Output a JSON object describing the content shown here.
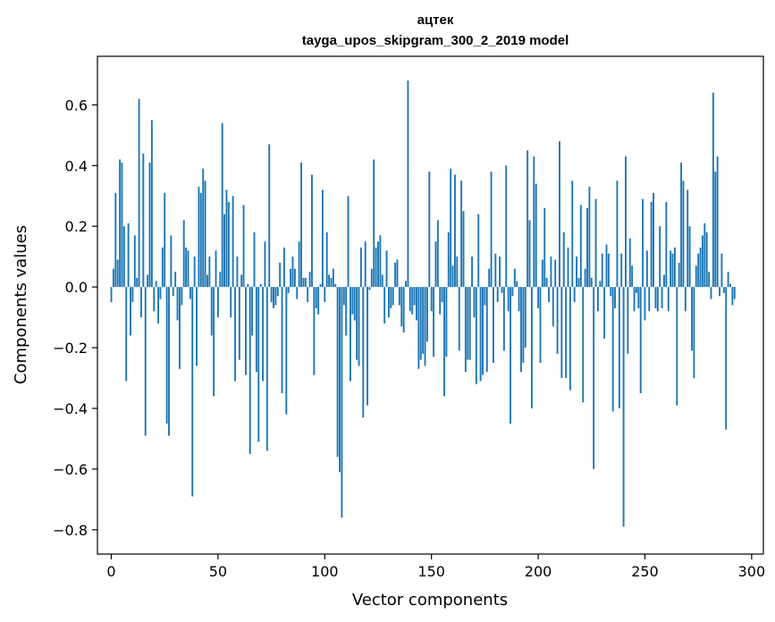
{
  "chart_data": {
    "type": "bar",
    "title": "ацтек",
    "subtitle": "tayga_upos_skipgram_300_2_2019 model",
    "xlabel": "Vector components",
    "ylabel": "Components values",
    "xlim": [
      -6.5,
      305.5
    ],
    "ylim": [
      -0.88,
      0.76
    ],
    "x_ticks": [
      0,
      50,
      100,
      150,
      200,
      250,
      300
    ],
    "x_tick_labels": [
      "0",
      "50",
      "100",
      "150",
      "200",
      "250",
      "300"
    ],
    "y_ticks": [
      -0.8,
      -0.6,
      -0.4,
      -0.2,
      0.0,
      0.2,
      0.4,
      0.6
    ],
    "y_tick_labels": [
      "−0.8",
      "−0.6",
      "−0.4",
      "−0.2",
      "0.0",
      "0.2",
      "0.4",
      "0.6"
    ],
    "bar_color": "#1f77b4",
    "grid": false,
    "legend": "none",
    "x_start": 0,
    "values": [
      -0.05,
      0.06,
      0.31,
      0.09,
      0.42,
      0.41,
      0.2,
      -0.31,
      0.21,
      -0.16,
      -0.05,
      0.17,
      0.03,
      0.62,
      -0.1,
      0.44,
      -0.49,
      0.04,
      0.41,
      0.55,
      -0.08,
      0.02,
      -0.12,
      -0.04,
      0.13,
      0.31,
      -0.45,
      -0.49,
      0.17,
      -0.03,
      0.05,
      -0.11,
      -0.27,
      -0.06,
      0.22,
      0.13,
      0.12,
      -0.04,
      -0.69,
      0.1,
      -0.26,
      0.33,
      0.31,
      0.39,
      0.35,
      0.04,
      0.1,
      -0.16,
      -0.36,
      0.12,
      -0.1,
      0.05,
      0.54,
      0.24,
      0.32,
      0.28,
      -0.1,
      0.3,
      -0.31,
      0.1,
      -0.24,
      0.04,
      0.27,
      -0.29,
      0.01,
      -0.55,
      -0.16,
      0.18,
      -0.28,
      -0.51,
      0.01,
      -0.31,
      0.15,
      -0.54,
      0.47,
      -0.05,
      -0.07,
      -0.06,
      -0.03,
      0.08,
      -0.35,
      0.13,
      -0.42,
      -0.02,
      0.06,
      0.1,
      0.06,
      -0.04,
      0.15,
      0.41,
      0.03,
      0.03,
      -0.05,
      0.05,
      0.37,
      -0.29,
      -0.07,
      -0.09,
      0.01,
      0.32,
      -0.05,
      0.18,
      0.04,
      0.03,
      0.06,
      0.01,
      -0.56,
      -0.61,
      -0.76,
      -0.06,
      -0.16,
      0.3,
      -0.31,
      -0.09,
      -0.11,
      -0.24,
      -0.26,
      0.13,
      -0.43,
      0.15,
      -0.39,
      -0.01,
      0.06,
      0.42,
      0.13,
      0.15,
      0.17,
      0.04,
      -0.12,
      0.12,
      -0.1,
      -0.07,
      -0.06,
      0.08,
      0.09,
      -0.06,
      -0.13,
      -0.15,
      0.02,
      0.68,
      -0.08,
      -0.09,
      -0.06,
      -0.11,
      -0.27,
      -0.24,
      -0.22,
      -0.26,
      -0.18,
      0.38,
      -0.08,
      -0.23,
      0.15,
      0.22,
      -0.09,
      -0.05,
      -0.36,
      -0.23,
      0.18,
      0.39,
      0.07,
      0.37,
      0.1,
      -0.21,
      0.35,
      0.25,
      -0.28,
      -0.24,
      -0.24,
      0.1,
      -0.1,
      -0.32,
      0.24,
      -0.31,
      -0.29,
      -0.06,
      -0.28,
      0.06,
      0.38,
      -0.25,
      0.11,
      -0.05,
      0.1,
      -0.02,
      -0.21,
      0.4,
      -0.08,
      -0.45,
      -0.03,
      0.06,
      0.02,
      -0.08,
      -0.28,
      -0.25,
      -0.2,
      0.45,
      0.22,
      -0.4,
      0.43,
      0.34,
      -0.07,
      -0.25,
      0.09,
      0.26,
      0.03,
      -0.05,
      0.1,
      -0.13,
      0.09,
      -0.22,
      0.48,
      -0.3,
      0.18,
      -0.3,
      0.13,
      -0.34,
      0.35,
      -0.05,
      0.1,
      0.03,
      0.27,
      -0.38,
      0.06,
      0.26,
      0.33,
      0.03,
      -0.6,
      0.29,
      -0.08,
      0.02,
      0.11,
      -0.17,
      0.14,
      0.11,
      -0.03,
      -0.41,
      -0.07,
      0.35,
      -0.4,
      0.11,
      -0.79,
      0.43,
      -0.22,
      0.16,
      0.07,
      -0.08,
      -0.02,
      -0.07,
      -0.35,
      0.29,
      -0.11,
      0.12,
      -0.08,
      0.28,
      0.31,
      -0.07,
      -0.08,
      0.2,
      -0.07,
      0.04,
      0.28,
      -0.08,
      0.12,
      0.11,
      0.13,
      -0.39,
      0.08,
      0.41,
      0.35,
      -0.08,
      0.32,
      0.2,
      -0.21,
      -0.3,
      0.07,
      0.11,
      0.13,
      0.17,
      0.21,
      0.18,
      0.05,
      -0.04,
      0.64,
      0.38,
      0.43,
      -0.03,
      0.11,
      -0.02,
      -0.47,
      0.05,
      0.01,
      -0.06,
      -0.04
    ]
  }
}
